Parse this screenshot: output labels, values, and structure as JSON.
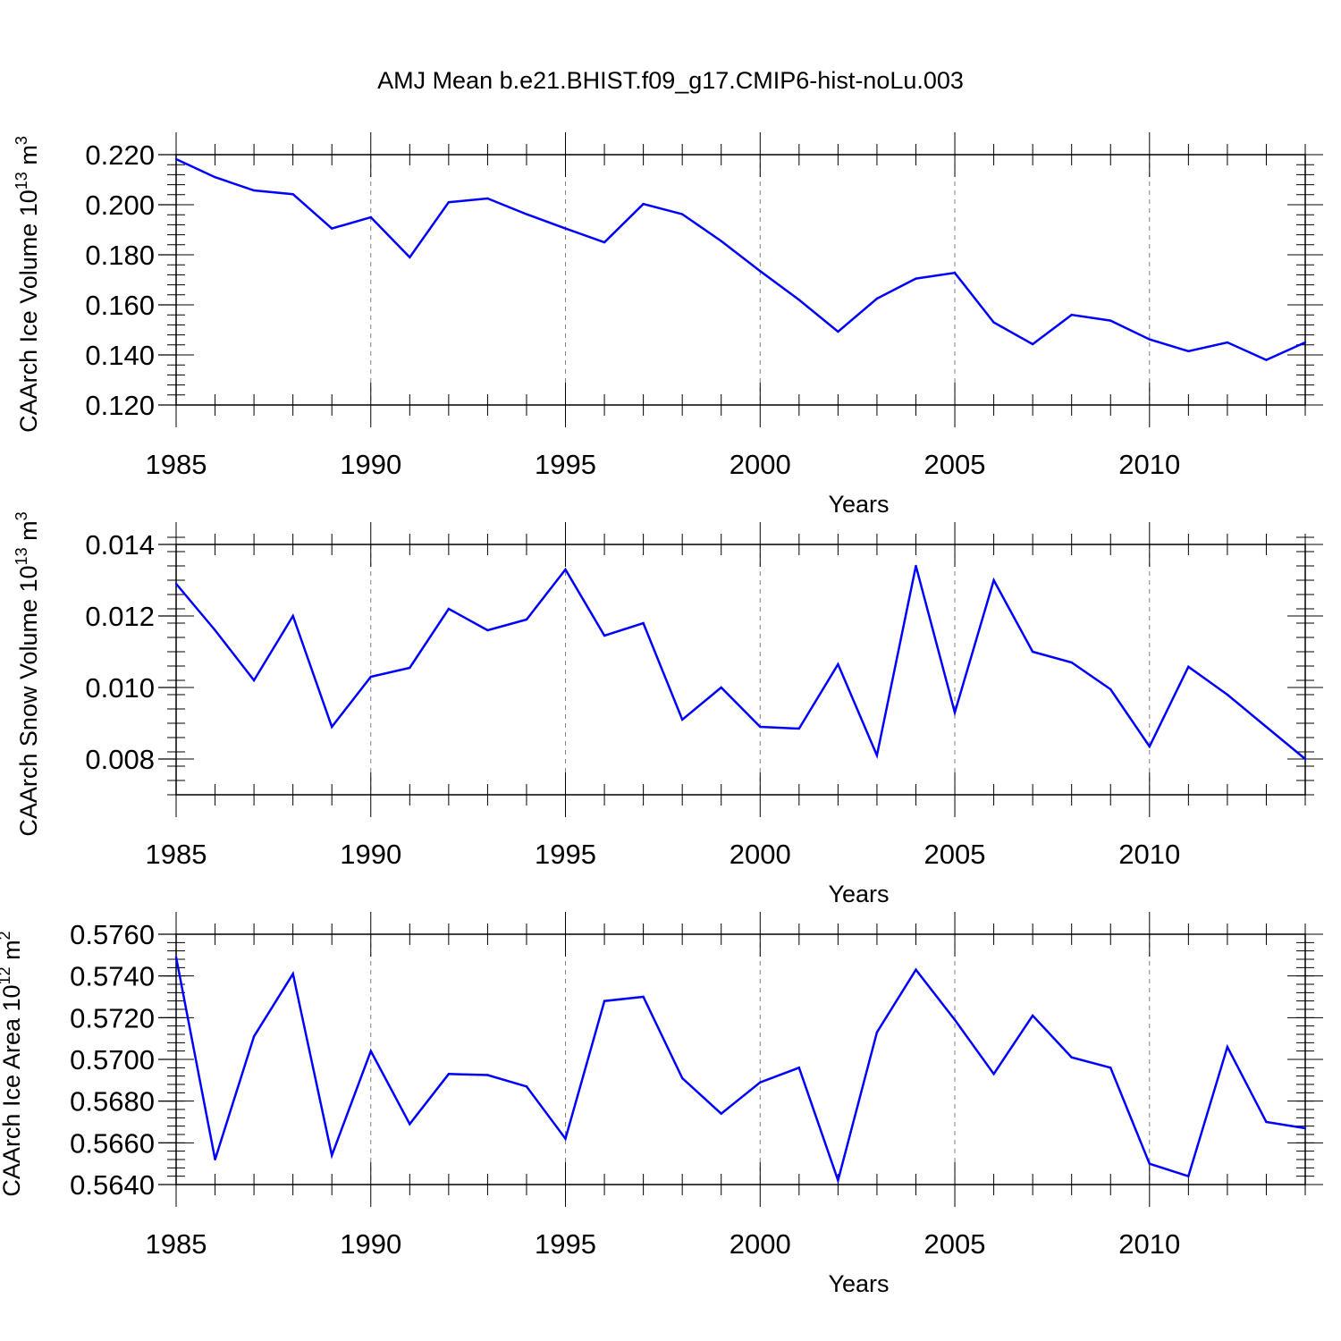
{
  "title": "AMJ Mean b.e21.BHIST.f09_g17.CMIP6-hist-noLu.003",
  "colors": {
    "line": "#0000ff",
    "axis": "#000000",
    "grid": "#808080"
  },
  "chart_data": [
    {
      "type": "line",
      "title": "AMJ Mean b.e21.BHIST.f09_g17.CMIP6-hist-noLu.003",
      "xlabel": "Years",
      "ylabel": {
        "base": "CAArch Ice Volume 10",
        "exp": "13",
        "unit": " m",
        "unit_exp": "3"
      },
      "xlim": [
        1985,
        2014
      ],
      "ylim": [
        0.12,
        0.22
      ],
      "xticks": [
        1985,
        1990,
        1995,
        2000,
        2005,
        2010
      ],
      "xtick_labels": [
        "1985",
        "1990",
        "1995",
        "2000",
        "2005",
        "2010"
      ],
      "yticks": [
        0.12,
        0.14,
        0.16,
        0.18,
        0.2,
        0.22
      ],
      "ytick_labels": [
        "0.120",
        "0.140",
        "0.160",
        "0.180",
        "0.200",
        "0.220"
      ],
      "minor_y_step": 0.004,
      "grid": "vertical dashed at major x ticks",
      "x": [
        1985,
        1986,
        1987,
        1988,
        1989,
        1990,
        1991,
        1992,
        1993,
        1994,
        1995,
        1996,
        1997,
        1998,
        1999,
        2000,
        2001,
        2002,
        2003,
        2004,
        2005,
        2006,
        2007,
        2008,
        2009,
        2010,
        2011,
        2012,
        2013,
        2014
      ],
      "y": [
        0.2182,
        0.211,
        0.2057,
        0.2042,
        0.1905,
        0.195,
        0.179,
        0.201,
        0.2025,
        0.1962,
        0.1905,
        0.185,
        0.2003,
        0.1962,
        0.1855,
        0.1735,
        0.162,
        0.1493,
        0.1625,
        0.1705,
        0.1728,
        0.153,
        0.1443,
        0.156,
        0.1537,
        0.1462,
        0.1415,
        0.145,
        0.138,
        0.145
      ]
    },
    {
      "type": "line",
      "xlabel": "Years",
      "ylabel": {
        "base": "CAArch Snow Volume 10",
        "exp": "13",
        "unit": " m",
        "unit_exp": "3"
      },
      "xlim": [
        1985,
        2014
      ],
      "ylim": [
        0.007,
        0.014
      ],
      "xticks": [
        1985,
        1990,
        1995,
        2000,
        2005,
        2010
      ],
      "xtick_labels": [
        "1985",
        "1990",
        "1995",
        "2000",
        "2005",
        "2010"
      ],
      "yticks": [
        0.008,
        0.01,
        0.012,
        0.014
      ],
      "ytick_labels": [
        "0.008",
        "0.010",
        "0.012",
        "0.014"
      ],
      "minor_y_step": 0.0004,
      "grid": "vertical dashed at major x ticks",
      "x": [
        1985,
        1986,
        1987,
        1988,
        1989,
        1990,
        1991,
        1992,
        1993,
        1994,
        1995,
        1996,
        1997,
        1998,
        1999,
        2000,
        2001,
        2002,
        2003,
        2004,
        2005,
        2006,
        2007,
        2008,
        2009,
        2010,
        2011,
        2012,
        2013,
        2014
      ],
      "y": [
        0.0129,
        0.0116,
        0.0102,
        0.012,
        0.0089,
        0.0103,
        0.01055,
        0.0122,
        0.0116,
        0.0119,
        0.0133,
        0.01145,
        0.0118,
        0.0091,
        0.01,
        0.0089,
        0.00885,
        0.01065,
        0.0081,
        0.0134,
        0.0093,
        0.013,
        0.011,
        0.0107,
        0.00995,
        0.00835,
        0.01058,
        0.0098,
        0.0089,
        0.008
      ]
    },
    {
      "type": "line",
      "xlabel": "Years",
      "ylabel": {
        "base": "CAArch Ice Area 10",
        "exp": "12",
        "unit": " m",
        "unit_exp": "2"
      },
      "xlim": [
        1985,
        2014
      ],
      "ylim": [
        0.564,
        0.576
      ],
      "xticks": [
        1985,
        1990,
        1995,
        2000,
        2005,
        2010
      ],
      "xtick_labels": [
        "1985",
        "1990",
        "1995",
        "2000",
        "2005",
        "2010"
      ],
      "yticks": [
        0.564,
        0.566,
        0.568,
        0.57,
        0.572,
        0.574,
        0.576
      ],
      "ytick_labels": [
        "0.5640",
        "0.5660",
        "0.5680",
        "0.5700",
        "0.5720",
        "0.5740",
        "0.5760"
      ],
      "minor_y_step": 0.0004,
      "grid": "vertical dashed at major x ticks",
      "x": [
        1985,
        1986,
        1987,
        1988,
        1989,
        1990,
        1991,
        1992,
        1993,
        1994,
        1995,
        1996,
        1997,
        1998,
        1999,
        2000,
        2001,
        2002,
        2003,
        2004,
        2005,
        2006,
        2007,
        2008,
        2009,
        2010,
        2011,
        2012,
        2013,
        2014
      ],
      "y": [
        0.5749,
        0.5652,
        0.5711,
        0.5741,
        0.5654,
        0.5704,
        0.5669,
        0.5693,
        0.56925,
        0.5687,
        0.5662,
        0.5728,
        0.573,
        0.5691,
        0.5674,
        0.5689,
        0.5696,
        0.5642,
        0.5713,
        0.5743,
        0.5719,
        0.5693,
        0.5721,
        0.5701,
        0.5696,
        0.565,
        0.5644,
        0.5706,
        0.567,
        0.5667
      ]
    }
  ]
}
